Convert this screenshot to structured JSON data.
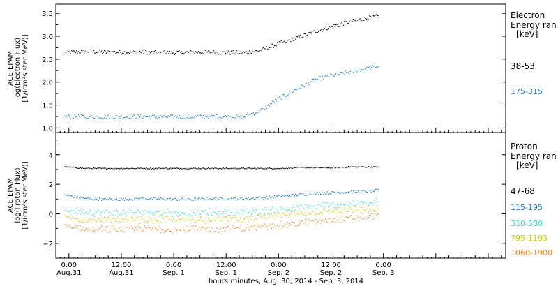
{
  "chart_data": {
    "type": "scatter",
    "x_axis": {
      "title": "hours:minutes, Aug. 30, 2014 - Sep. 3, 2014",
      "range_hours": [
        -3,
        100
      ],
      "ticks": [
        {
          "hour": 0,
          "time": "0:00",
          "date": "Aug.31"
        },
        {
          "hour": 12,
          "time": "12:00",
          "date": "Aug.31"
        },
        {
          "hour": 24,
          "time": "0:00",
          "date": "Sep. 1"
        },
        {
          "hour": 36,
          "time": "12:00",
          "date": "Sep. 1"
        },
        {
          "hour": 48,
          "time": "0:00",
          "date": "Sep. 2"
        },
        {
          "hour": 60,
          "time": "12:00",
          "date": "Sep. 2"
        },
        {
          "hour": 72,
          "time": "0:00",
          "date": "Sep. 3"
        }
      ]
    },
    "panels": [
      {
        "id": "electron",
        "ylabel_lines": [
          "ACE EPAM",
          "log(Electron Flux)",
          "[1/(cm²s ster MeV)]"
        ],
        "ylim": [
          0.9,
          3.7
        ],
        "yticks": [
          1.0,
          1.5,
          2.0,
          2.5,
          3.0,
          3.5
        ],
        "ytick_labels": [
          "1.0",
          "1.5",
          "2.0",
          "2.5",
          "3.0",
          "3.5"
        ],
        "legend_title": [
          "Electron",
          "Energy ran",
          "[keV]"
        ],
        "series": [
          {
            "name": "38-53",
            "color": "#000000",
            "x": [
              -1,
              4,
              8,
              12,
              16,
              20,
              24,
              28,
              32,
              36,
              40,
              44,
              48,
              52,
              56,
              60,
              64,
              68,
              71
            ],
            "y": [
              2.65,
              2.68,
              2.66,
              2.66,
              2.67,
              2.65,
              2.65,
              2.66,
              2.66,
              2.65,
              2.65,
              2.7,
              2.85,
              2.97,
              3.1,
              3.22,
              3.32,
              3.4,
              3.45
            ]
          },
          {
            "name": "175-315",
            "color": "#1e7fd8",
            "x": [
              -1,
              4,
              8,
              12,
              16,
              20,
              24,
              28,
              32,
              36,
              40,
              44,
              48,
              52,
              56,
              60,
              64,
              68,
              71
            ],
            "y": [
              1.25,
              1.26,
              1.25,
              1.25,
              1.26,
              1.25,
              1.25,
              1.25,
              1.26,
              1.25,
              1.25,
              1.4,
              1.65,
              1.85,
              2.05,
              2.15,
              2.22,
              2.3,
              2.36
            ]
          }
        ]
      },
      {
        "id": "proton",
        "ylabel_lines": [
          "ACE EPAM",
          "log(Proton Flux)",
          "[1/(cm²s ster MeV)]"
        ],
        "ylim": [
          -3.0,
          5.5
        ],
        "yticks": [
          -2,
          0,
          2,
          4
        ],
        "ytick_labels": [
          "−2",
          "0",
          "2",
          "4"
        ],
        "legend_title": [
          "Proton",
          "Energy ran",
          "[keV]"
        ],
        "series": [
          {
            "name": "47-68",
            "color": "#000000",
            "x": [
              -1,
              4,
              8,
              12,
              16,
              20,
              24,
              28,
              32,
              36,
              40,
              44,
              48,
              52,
              56,
              60,
              64,
              68,
              71
            ],
            "y": [
              3.2,
              3.1,
              3.1,
              3.1,
              3.1,
              3.1,
              3.1,
              3.1,
              3.1,
              3.1,
              3.1,
              3.1,
              3.1,
              3.15,
              3.15,
              3.15,
              3.2,
              3.2,
              3.2
            ]
          },
          {
            "name": "115-195",
            "color": "#1e7fd8",
            "x": [
              -1,
              4,
              8,
              12,
              16,
              20,
              24,
              28,
              32,
              36,
              40,
              44,
              48,
              52,
              56,
              60,
              64,
              68,
              71
            ],
            "y": [
              1.3,
              1.05,
              1.0,
              1.0,
              1.05,
              1.05,
              1.0,
              1.0,
              1.05,
              1.05,
              1.05,
              1.1,
              1.2,
              1.3,
              1.4,
              1.45,
              1.5,
              1.55,
              1.6
            ]
          },
          {
            "name": "310-580",
            "color": "#33dddd",
            "x": [
              -1,
              4,
              8,
              12,
              16,
              20,
              24,
              28,
              32,
              36,
              40,
              44,
              48,
              52,
              56,
              60,
              64,
              68,
              71
            ],
            "y": [
              0.3,
              0.15,
              0.1,
              0.1,
              0.15,
              0.15,
              0.1,
              0.1,
              0.15,
              0.15,
              0.15,
              0.2,
              0.3,
              0.4,
              0.5,
              0.6,
              0.7,
              0.75,
              0.8
            ]
          },
          {
            "name": "795-1193",
            "color": "#cccc00",
            "x": [
              -1,
              4,
              8,
              12,
              16,
              20,
              24,
              28,
              32,
              36,
              40,
              44,
              48,
              52,
              56,
              60,
              64,
              68,
              71
            ],
            "y": [
              -0.2,
              -0.35,
              -0.4,
              -0.4,
              -0.35,
              -0.35,
              -0.4,
              -0.35,
              -0.35,
              -0.35,
              -0.3,
              -0.2,
              -0.1,
              0.0,
              0.1,
              0.2,
              0.25,
              0.3,
              0.35
            ]
          },
          {
            "name": "1060-1900",
            "color": "#ee8822",
            "x": [
              -1,
              4,
              8,
              12,
              16,
              20,
              24,
              28,
              32,
              36,
              40,
              44,
              48,
              52,
              56,
              60,
              64,
              68,
              71
            ],
            "y": [
              -0.8,
              -1.0,
              -1.05,
              -1.05,
              -1.0,
              -1.0,
              -1.05,
              -1.0,
              -1.0,
              -1.0,
              -0.95,
              -0.85,
              -0.75,
              -0.65,
              -0.5,
              -0.4,
              -0.3,
              -0.2,
              -0.1
            ]
          }
        ]
      }
    ]
  }
}
